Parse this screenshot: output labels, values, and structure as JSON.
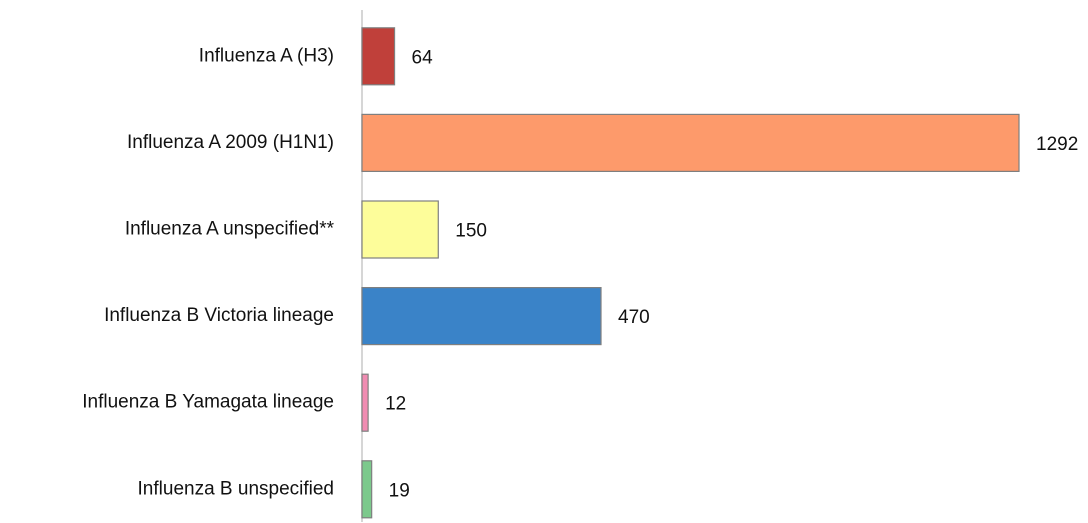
{
  "chart_data": {
    "type": "hbar",
    "categories": [
      "Influenza A (H3)",
      "Influenza A 2009 (H1N1)",
      "Influenza A unspecified**",
      "Influenza B Victoria lineage",
      "Influenza B Yamagata lineage",
      "Influenza B unspecified"
    ],
    "values": [
      64,
      1292,
      150,
      470,
      12,
      19
    ],
    "colors": [
      "#c0403a",
      "#fd9a6b",
      "#fdfd9a",
      "#3a83c8",
      "#f08cb2",
      "#7cc98c"
    ]
  }
}
